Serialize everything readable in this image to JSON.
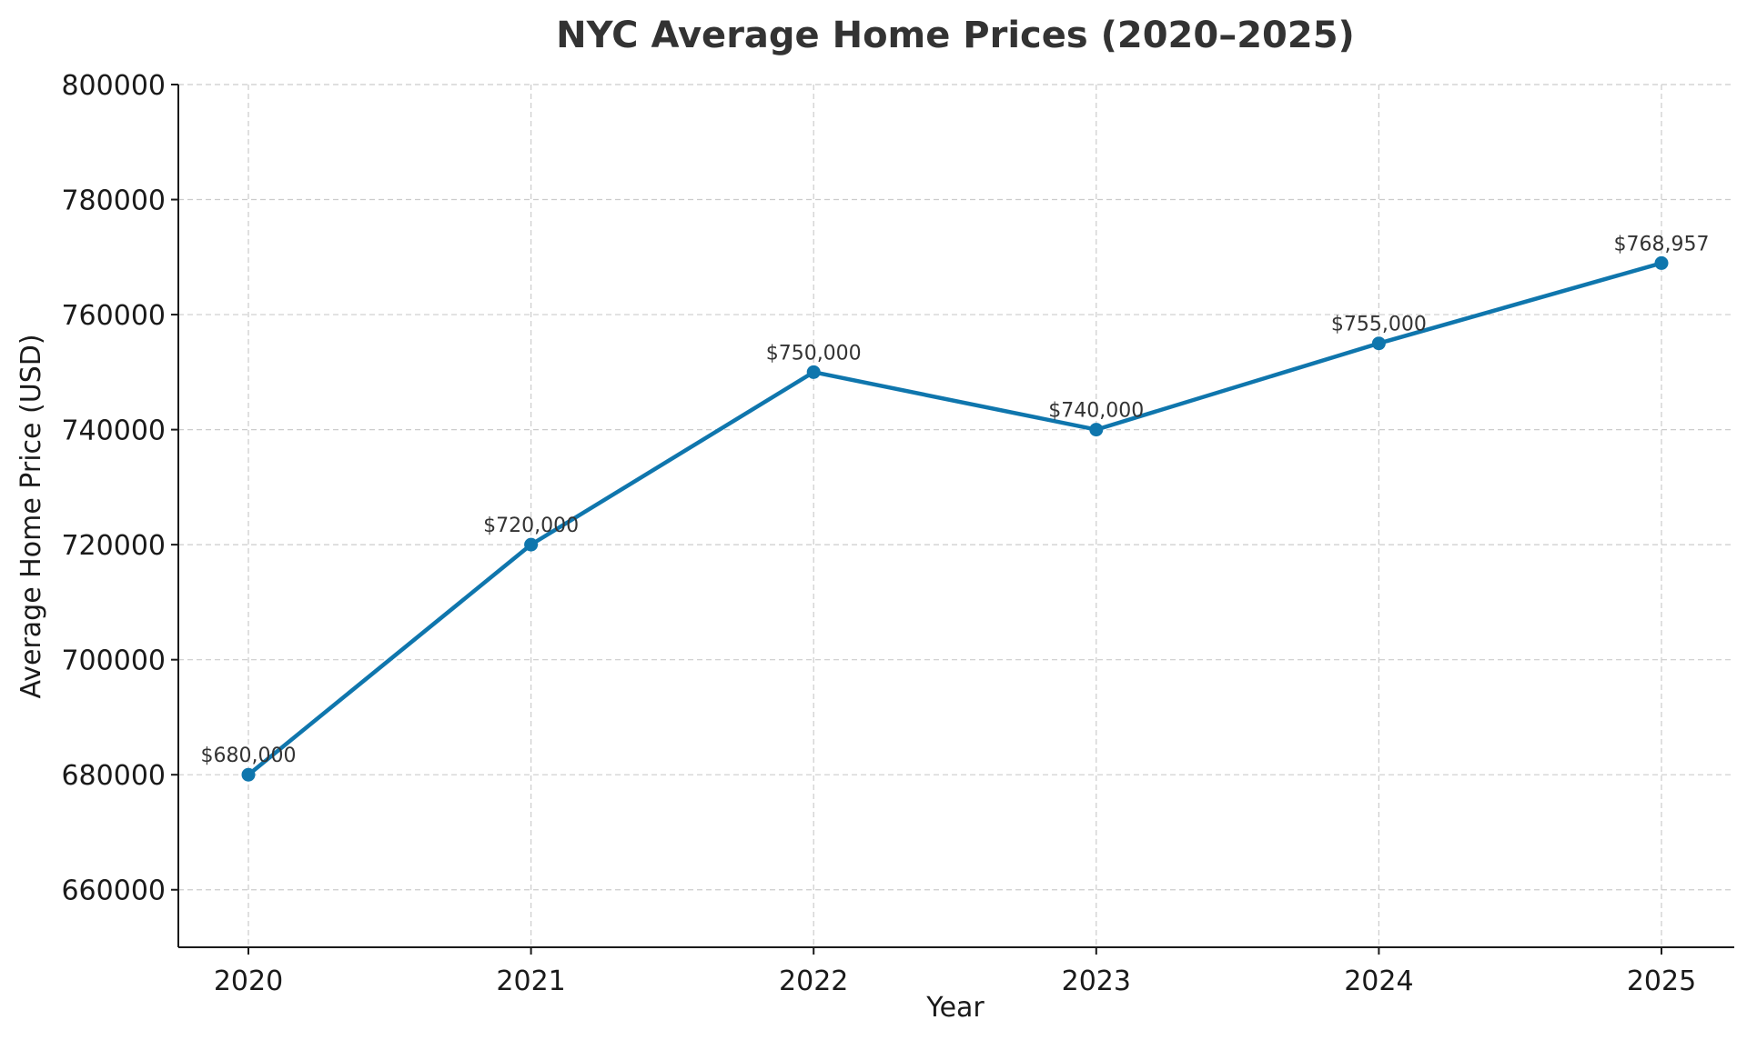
{
  "chart_data": {
    "type": "line",
    "title": "NYC Average Home Prices (2020–2025)",
    "xlabel": "Year",
    "ylabel": "Average Home Price (USD)",
    "categories": [
      "2020",
      "2021",
      "2022",
      "2023",
      "2024",
      "2025"
    ],
    "series": [
      {
        "values": [
          680000,
          720000,
          750000,
          740000,
          755000,
          768957
        ],
        "labels": [
          "$680,000",
          "$720,000",
          "$750,000",
          "$740,000",
          "$755,000",
          "$768,957"
        ],
        "color": "#0f76ad"
      }
    ],
    "ylim": [
      650000,
      800000
    ],
    "yticks": [
      660000,
      680000,
      700000,
      720000,
      740000,
      760000,
      780000,
      800000
    ],
    "grid": true,
    "legend": "none"
  }
}
